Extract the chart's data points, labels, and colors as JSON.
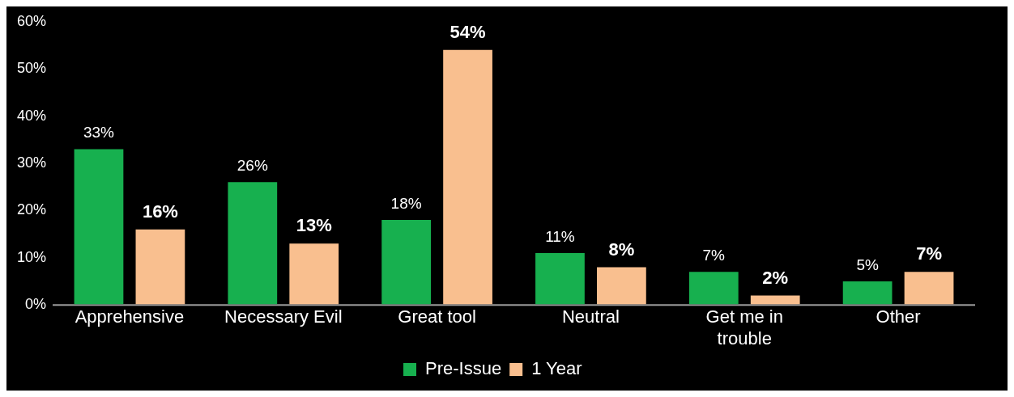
{
  "chart_data": {
    "type": "bar",
    "categories": [
      "Apprehensive",
      "Necessary Evil",
      "Great tool",
      "Neutral",
      "Get me in trouble",
      "Other"
    ],
    "series": [
      {
        "name": "Pre-Issue",
        "color": "#17b04f",
        "values": [
          33,
          26,
          18,
          11,
          7,
          5
        ],
        "value_labels": [
          "33%",
          "26%",
          "18%",
          "11%",
          "7%",
          "5%"
        ]
      },
      {
        "name": "1 Year",
        "color": "#f9bf8f",
        "values": [
          16,
          13,
          54,
          8,
          2,
          7
        ],
        "value_labels": [
          "16%",
          "13%",
          "54%",
          "8%",
          "2%",
          "7%"
        ]
      }
    ],
    "ylim": [
      0,
      60
    ],
    "yticks": [
      {
        "value": 0,
        "label": "0%"
      },
      {
        "value": 10,
        "label": "10%"
      },
      {
        "value": 20,
        "label": "20%"
      },
      {
        "value": 30,
        "label": "30%"
      },
      {
        "value": 40,
        "label": "40%"
      },
      {
        "value": 50,
        "label": "50%"
      },
      {
        "value": 60,
        "label": "60%"
      }
    ],
    "grid": false,
    "legend": "bottom"
  }
}
